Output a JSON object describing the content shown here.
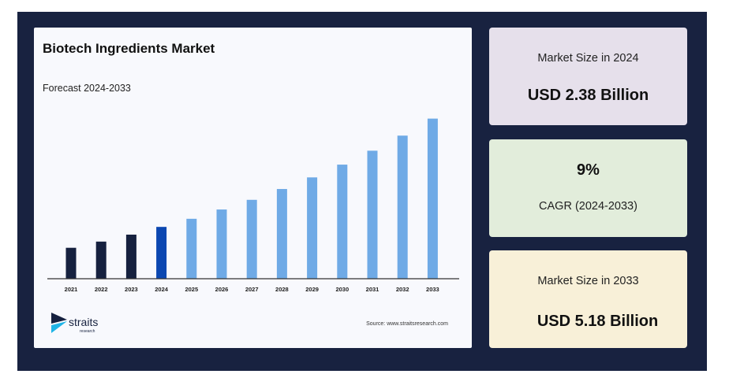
{
  "chart_data": {
    "type": "bar",
    "title": "Biotech Ingredients Market",
    "subtitle": "Forecast 2024-2033",
    "categories": [
      "2021",
      "2022",
      "2023",
      "2024",
      "2025",
      "2026",
      "2027",
      "2028",
      "2029",
      "2030",
      "2031",
      "2032",
      "2033"
    ],
    "values": [
      1.84,
      2.0,
      2.18,
      2.38,
      2.59,
      2.83,
      3.08,
      3.36,
      3.66,
      3.99,
      4.35,
      4.74,
      5.18
    ],
    "unit": "USD Billion",
    "xlabel": "",
    "ylabel": "",
    "ylim": [
      1.04,
      5.6
    ],
    "grid": false,
    "colors": {
      "historical": "#16213f",
      "base_year": "#0b47b1",
      "forecast": "#6faae6"
    },
    "source": "Source: www.straitsresearch.com"
  },
  "logo": {
    "name": "straits",
    "sub": "research"
  },
  "cards": [
    {
      "label": "Market Size in 2024",
      "value": "USD 2.38 Billion"
    },
    {
      "value": "9%",
      "label": "CAGR (2024-2033)"
    },
    {
      "label": "Market Size in 2033",
      "value": "USD 5.18 Billion"
    }
  ]
}
